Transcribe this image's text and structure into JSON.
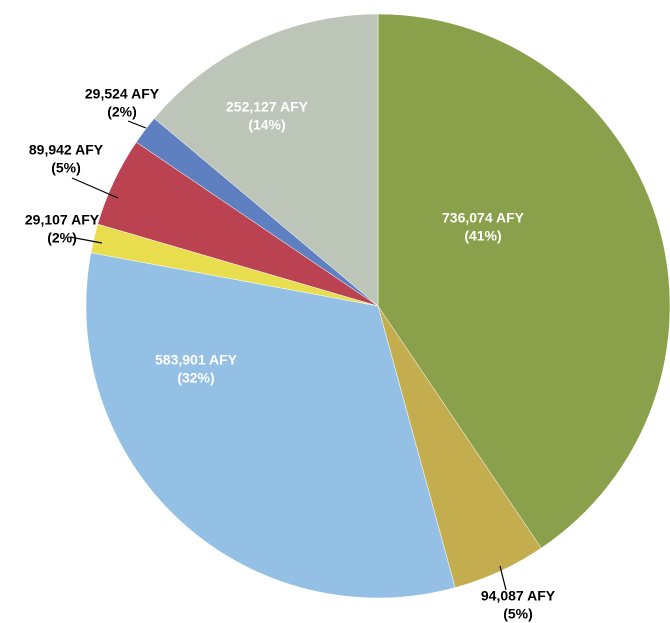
{
  "chart_data": {
    "type": "pie",
    "categories": [
      null,
      null,
      null,
      null,
      null,
      null,
      null
    ],
    "values": [
      736074,
      94087,
      583901,
      29107,
      89942,
      29524,
      252127
    ],
    "value_labels": [
      [
        "736,074 AFY",
        "(41%)"
      ],
      [
        "94,087 AFY",
        "(5%)"
      ],
      [
        "583,901 AFY",
        "(32%)"
      ],
      [
        "29,107 AFY",
        "(2%)"
      ],
      [
        "89,942 AFY",
        "(5%)"
      ],
      [
        "29,524 AFY",
        "(2%)"
      ],
      [
        "252,127 AFY",
        "(14%)"
      ]
    ],
    "colors": [
      "#8aa04a",
      "#c4ad4e",
      "#95c0e6",
      "#e8dd4c",
      "#bb4250",
      "#5f80c0",
      "#bcc5b8"
    ]
  }
}
